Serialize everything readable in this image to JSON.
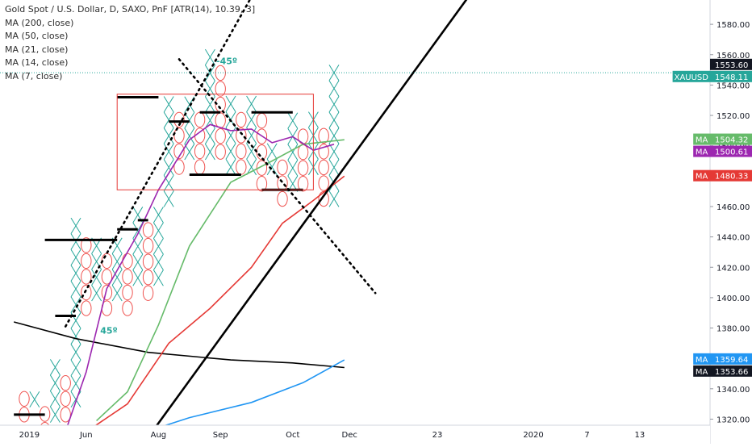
{
  "legend": {
    "title": "Gold Spot / U.S. Dollar, D, SAXO, PnF [ATR(14), 10.39, 3]",
    "ma_lines": [
      "MA (200, close)",
      "MA (50, close)",
      "MA (21, close)",
      "MA (14, close)",
      "MA (7, close)"
    ]
  },
  "chart_data": {
    "type": "point-and-figure",
    "symbol": "XAUUSD",
    "ylim": [
      1316,
      1596
    ],
    "y_ticks": [
      1320,
      1340,
      1360,
      1380,
      1400,
      1420,
      1440,
      1460,
      1480,
      1500,
      1520,
      1540,
      1560,
      1580
    ],
    "x_ticks": [
      "2019",
      "Jun",
      "Aug",
      "Sep",
      "Oct",
      "Dec",
      "23",
      "2020",
      "7",
      "13"
    ],
    "x_tick_index": [
      0.5,
      6,
      13,
      19,
      26,
      31.5,
      40,
      49.3,
      54.5,
      59.6
    ],
    "box_size": 10.39,
    "columns": [
      {
        "type": "O",
        "high": 1333,
        "low": 1323
      },
      {
        "type": "X",
        "high": 1333,
        "low": 1333
      },
      {
        "type": "O",
        "high": 1323,
        "low": 1313
      },
      {
        "type": "X",
        "high": 1353,
        "low": 1323
      },
      {
        "type": "O",
        "high": 1343,
        "low": 1323
      },
      {
        "type": "X",
        "high": 1444,
        "low": 1333
      },
      {
        "type": "O",
        "high": 1434,
        "low": 1393
      },
      {
        "type": "X",
        "high": 1434,
        "low": 1403
      },
      {
        "type": "O",
        "high": 1424,
        "low": 1393
      },
      {
        "type": "X",
        "high": 1434,
        "low": 1403
      },
      {
        "type": "O",
        "high": 1424,
        "low": 1393
      },
      {
        "type": "X",
        "high": 1455,
        "low": 1413
      },
      {
        "type": "O",
        "high": 1444,
        "low": 1403
      },
      {
        "type": "X",
        "high": 1455,
        "low": 1413
      },
      {
        "type": "X",
        "high": 1527,
        "low": 1465
      },
      {
        "type": "O",
        "high": 1517,
        "low": 1486
      },
      {
        "type": "X",
        "high": 1527,
        "low": 1496
      },
      {
        "type": "O",
        "high": 1517,
        "low": 1486
      },
      {
        "type": "X",
        "high": 1558,
        "low": 1496
      },
      {
        "type": "O",
        "high": 1548,
        "low": 1496
      },
      {
        "type": "X",
        "high": 1527,
        "low": 1486
      },
      {
        "type": "O",
        "high": 1517,
        "low": 1486
      },
      {
        "type": "X",
        "high": 1527,
        "low": 1486
      },
      {
        "type": "O",
        "high": 1517,
        "low": 1475
      },
      {
        "type": "X",
        "high": 1496,
        "low": 1486
      },
      {
        "type": "O",
        "high": 1486,
        "low": 1465
      },
      {
        "type": "X",
        "high": 1517,
        "low": 1475
      },
      {
        "type": "O",
        "high": 1506,
        "low": 1475
      },
      {
        "type": "X",
        "high": 1517,
        "low": 1486
      },
      {
        "type": "O",
        "high": 1506,
        "low": 1465
      },
      {
        "type": "X",
        "high": 1548,
        "low": 1465
      }
    ],
    "last_price": 1548.11,
    "high_marker": 1553.6,
    "moving_averages": [
      {
        "name": "MA (200, close)",
        "color": "#000000",
        "label": "1353.66",
        "points": [
          [
            -1,
            1384
          ],
          [
            5,
            1373
          ],
          [
            12,
            1364
          ],
          [
            20,
            1359
          ],
          [
            26,
            1357
          ],
          [
            31,
            1354
          ]
        ]
      },
      {
        "name": "MA (50, close)",
        "color": "#2196f3",
        "label": "1359.64",
        "points": [
          [
            11,
            1310
          ],
          [
            16,
            1321
          ],
          [
            22,
            1331
          ],
          [
            27,
            1344
          ],
          [
            31,
            1359
          ]
        ]
      },
      {
        "name": "MA (21, close)",
        "color": "#e53935",
        "label": "1480.33",
        "points": [
          [
            5,
            1307
          ],
          [
            10,
            1330
          ],
          [
            14,
            1370
          ],
          [
            18,
            1393
          ],
          [
            22,
            1420
          ],
          [
            25,
            1449
          ],
          [
            28,
            1464
          ],
          [
            31,
            1480
          ]
        ]
      },
      {
        "name": "MA (14, close)",
        "color": "#66bb6a",
        "label": "1504.32",
        "points": [
          [
            7,
            1319
          ],
          [
            10,
            1338
          ],
          [
            13,
            1382
          ],
          [
            16,
            1434
          ],
          [
            20,
            1476
          ],
          [
            24,
            1490
          ],
          [
            27,
            1501
          ],
          [
            31,
            1504
          ]
        ]
      },
      {
        "name": "MA (7, close)",
        "color": "#9c27b0",
        "label": "1500.61",
        "points": [
          [
            4,
            1312
          ],
          [
            6,
            1351
          ],
          [
            8,
            1406
          ],
          [
            11,
            1442
          ],
          [
            13,
            1471
          ],
          [
            16,
            1504
          ],
          [
            18,
            1514
          ],
          [
            20,
            1510
          ],
          [
            22,
            1511
          ],
          [
            24,
            1502
          ],
          [
            26,
            1506
          ],
          [
            28,
            1497
          ],
          [
            30,
            1501
          ]
        ]
      }
    ],
    "support_resistance": [
      {
        "level": 1323,
        "from": -1,
        "to": 2
      },
      {
        "level": 1388,
        "from": 3,
        "to": 5
      },
      {
        "level": 1438,
        "from": 2,
        "to": 9
      },
      {
        "level": 1445,
        "from": 9,
        "to": 11
      },
      {
        "level": 1451,
        "from": 11,
        "to": 12
      },
      {
        "level": 1532,
        "from": 9,
        "to": 13
      },
      {
        "level": 1516,
        "from": 14,
        "to": 16
      },
      {
        "level": 1522,
        "from": 17,
        "to": 19
      },
      {
        "level": 1481,
        "from": 16,
        "to": 21
      },
      {
        "level": 1522,
        "from": 22,
        "to": 26
      },
      {
        "level": 1471,
        "from": 23,
        "to": 27
      }
    ],
    "trendlines": [
      {
        "style": "dotted",
        "label": "45º",
        "points": [
          [
            4,
            1381
          ],
          [
            22,
            1598
          ]
        ]
      },
      {
        "style": "dotted",
        "label": "-45º",
        "points": [
          [
            15,
            1557
          ],
          [
            34,
            1403
          ]
        ]
      },
      {
        "style": "solid",
        "points": [
          [
            12,
            1308
          ],
          [
            43,
            1598
          ]
        ]
      }
    ],
    "box": {
      "x_from": 9,
      "x_to": 28,
      "y_from": 1471,
      "y_to": 1534
    }
  },
  "price_labels": [
    {
      "text": "1553.60",
      "kind": "high",
      "bg": "#131722",
      "value": 1553.6
    },
    {
      "text": "1548.11",
      "kind": "last",
      "name": "XAUUSD",
      "bg": "#26a69a",
      "value": 1548.11
    },
    {
      "text": "1504.32",
      "kind": "ma",
      "name": "MA",
      "bg": "#66bb6a",
      "value": 1504.32
    },
    {
      "text": "1500.61",
      "kind": "ma",
      "name": "MA",
      "bg": "#9c27b0",
      "value": 1500.61
    },
    {
      "text": "1480.33",
      "kind": "ma",
      "name": "MA",
      "bg": "#e53935",
      "value": 1480.33
    },
    {
      "text": "1359.64",
      "kind": "ma",
      "name": "MA",
      "bg": "#2196f3",
      "value": 1359.64
    },
    {
      "text": "1353.66",
      "kind": "ma",
      "name": "MA",
      "bg": "#131722",
      "value": 1353.66
    }
  ]
}
